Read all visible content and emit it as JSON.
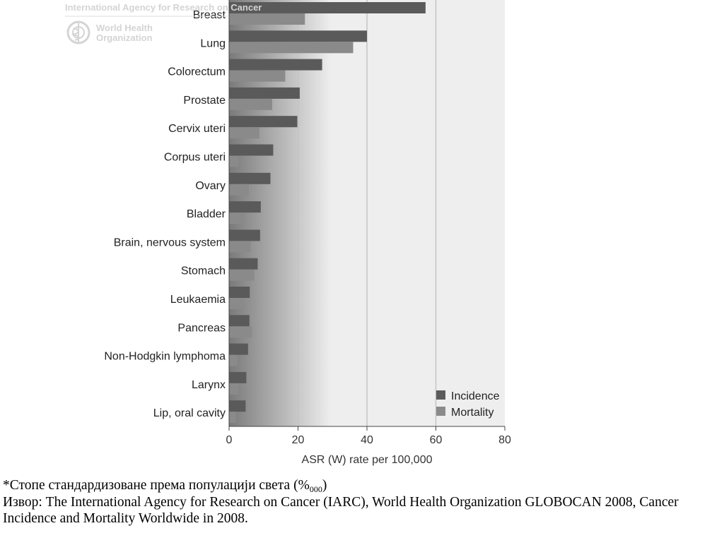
{
  "header": {
    "agency_text": "International Agency for Research on Cancer",
    "who_line1": "World Health",
    "who_line2": "Organization"
  },
  "chart_data": {
    "type": "bar",
    "orientation": "horizontal",
    "categories": [
      "Breast",
      "Lung",
      "Colorectum",
      "Prostate",
      "Cervix uteri",
      "Corpus uteri",
      "Ovary",
      "Bladder",
      "Brain, nervous system",
      "Stomach",
      "Leukaemia",
      "Pancreas",
      "Non-Hodgkin lymphoma",
      "Larynx",
      "Lip, oral cavity"
    ],
    "series": [
      {
        "name": "Incidence",
        "color": "#5a5a5a",
        "values": [
          57,
          40,
          27,
          20.5,
          19.8,
          12.8,
          12,
          9.2,
          9,
          8.3,
          6,
          5.9,
          5.5,
          5,
          4.8
        ]
      },
      {
        "name": "Mortality",
        "color": "#8a8a8a",
        "values": [
          22,
          36,
          16.3,
          12.5,
          8.8,
          2.8,
          5.7,
          3.6,
          6.2,
          7.3,
          4.1,
          6.6,
          2.4,
          2.8,
          2
        ]
      }
    ],
    "xlabel": "ASR (W) rate per 100,000",
    "xlim": [
      0,
      80
    ],
    "xticks": [
      0,
      20,
      40,
      60,
      80
    ],
    "grid": true,
    "legend_position": "bottom-right"
  },
  "captions": {
    "line1_main": "*Стопе стандардизоване према популацији света (%",
    "line1_sub": "000",
    "line1_end": ")",
    "source": "Извор: The International Agency for Research on Cancer (IARC), World Health Organization GLOBOCAN 2008, Cancer Incidence and Mortality Worldwide in 2008."
  }
}
